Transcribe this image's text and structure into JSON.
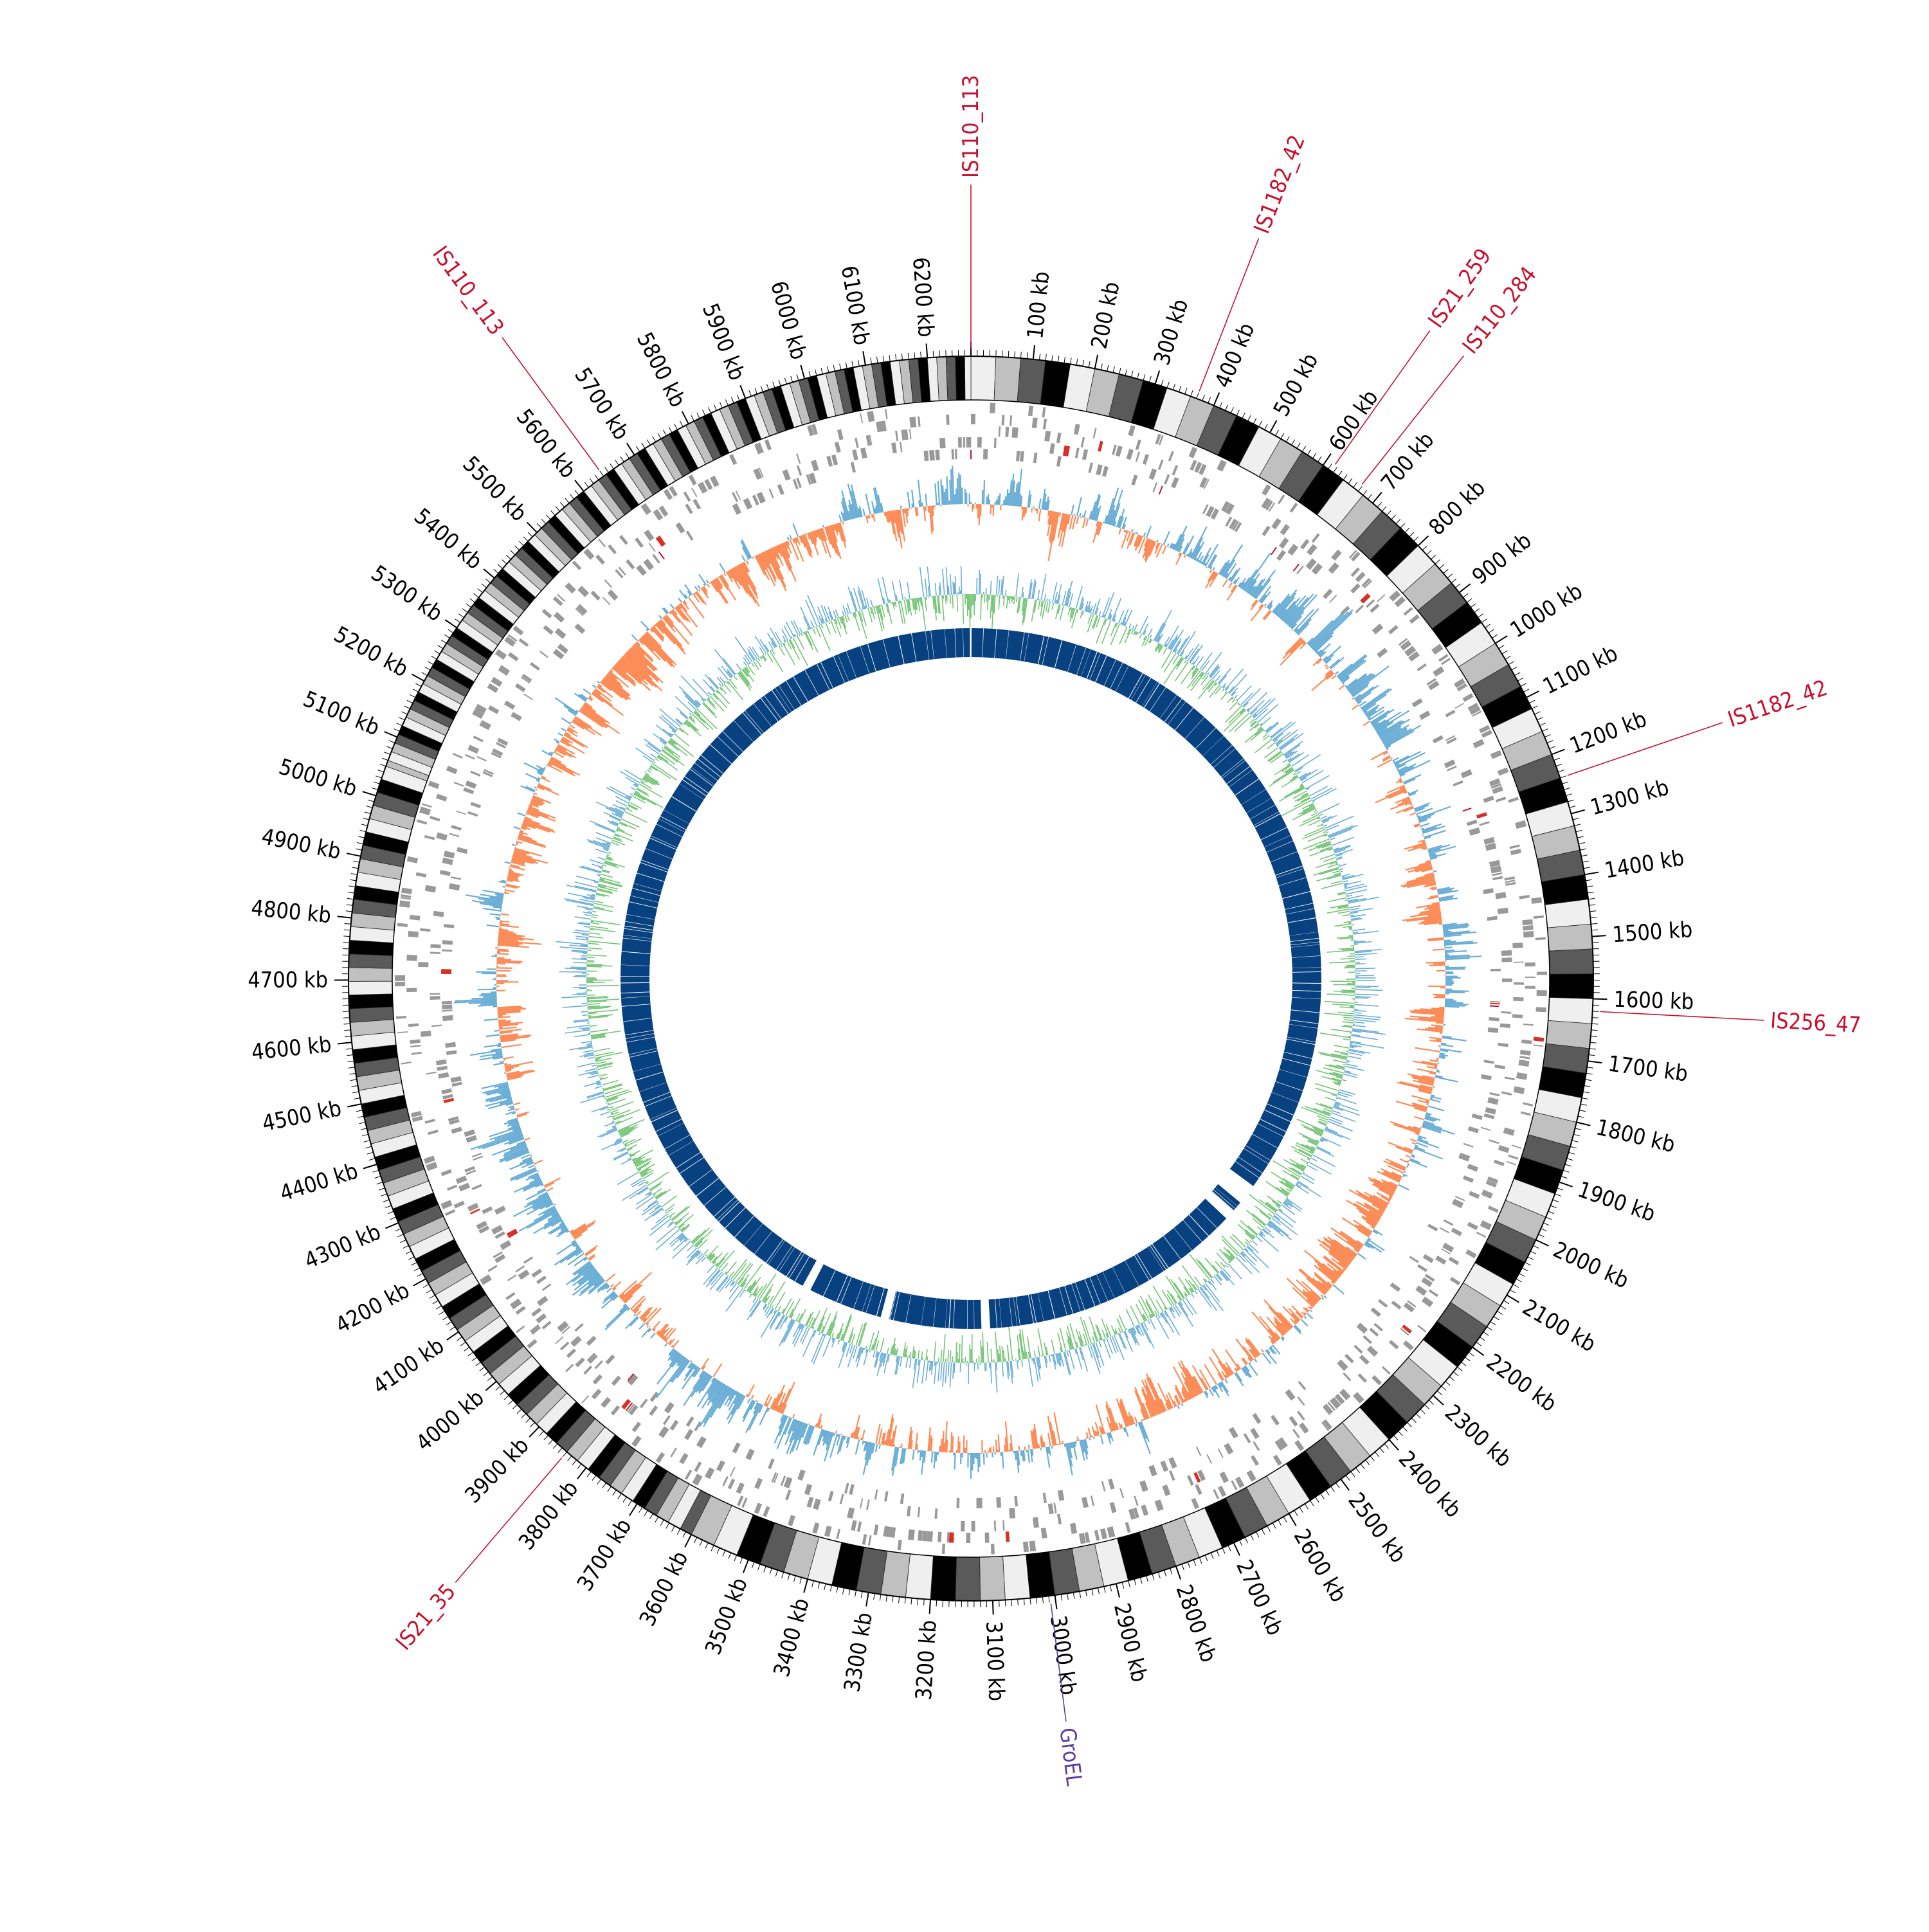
{
  "chart_data": {
    "type": "circular-genome-map",
    "genome_size_kb": 6270,
    "position_labels": [
      "100 kb",
      "200 kb",
      "300 kb",
      "400 kb",
      "500 kb",
      "600 kb",
      "700 kb",
      "800 kb",
      "900 kb",
      "1000 kb",
      "1100 kb",
      "1200 kb",
      "1300 kb",
      "1400 kb",
      "1500 kb",
      "1600 kb",
      "1700 kb",
      "1800 kb",
      "1900 kb",
      "2000 kb",
      "2100 kb",
      "2200 kb",
      "2300 kb",
      "2400 kb",
      "2500 kb",
      "2600 kb",
      "2700 kb",
      "2800 kb",
      "2900 kb",
      "3000 kb",
      "3100 kb",
      "3200 kb",
      "3300 kb",
      "3400 kb",
      "3500 kb",
      "3600 kb",
      "3700 kb",
      "3800 kb",
      "3900 kb",
      "4000 kb",
      "4100 kb",
      "4200 kb",
      "4300 kb",
      "4400 kb",
      "4500 kb",
      "4600 kb",
      "4700 kb",
      "4800 kb",
      "4900 kb",
      "5000 kb",
      "5100 kb",
      "5200 kb",
      "5300 kb",
      "5400 kb",
      "5500 kb",
      "5600 kb",
      "5700 kb",
      "5800 kb",
      "5900 kb",
      "6000 kb",
      "6100 kb",
      "6200 kb"
    ],
    "insertion_elements": [
      {
        "name": "IS110_113",
        "position_kb": 0
      },
      {
        "name": "IS1182_42",
        "position_kb": 370
      },
      {
        "name": "IS21_259",
        "position_kb": 615
      },
      {
        "name": "IS110_284",
        "position_kb": 668
      },
      {
        "name": "IS1182_42",
        "position_kb": 1240
      },
      {
        "name": "IS256_47",
        "position_kb": 1620
      },
      {
        "name": "IS21_35",
        "position_kb": 3840
      },
      {
        "name": "IS110_113",
        "position_kb": 5640
      }
    ],
    "gene_marker": {
      "name": "GroEL",
      "position_kb": 3008
    },
    "tracks": [
      {
        "name": "ideogram",
        "type": "karyotype bands"
      },
      {
        "name": "genes",
        "type": "tiles",
        "color": "#999999"
      },
      {
        "name": "gc-skew",
        "type": "histogram",
        "colors": [
          "#6baed6",
          "#fc8d59"
        ]
      },
      {
        "name": "gc-content",
        "type": "histogram",
        "colors": [
          "#6baed6",
          "#74c476"
        ]
      },
      {
        "name": "conserved-regions",
        "type": "highlight",
        "color": "#08417f"
      }
    ]
  },
  "colors": {
    "is_label": "#c8102e",
    "gene_label": "#5b3fa3",
    "blue_track": "#08417f",
    "skew_up": "#6baed6",
    "skew_down": "#fc8d59",
    "gc_up": "#6baed6",
    "gc_down": "#74c476",
    "gene_tile": "#999999"
  }
}
